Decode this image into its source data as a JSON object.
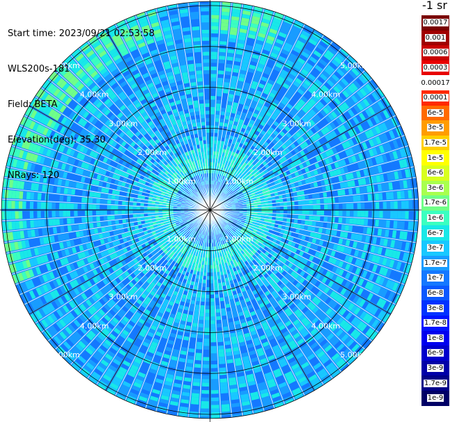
{
  "info": {
    "start_time": "Start time: 2023/09/21 02:53:58",
    "device": "WLS200s-181",
    "field": "Field: BETA",
    "elevation": "Elevation(deg): 35.30",
    "nrays": "NRays: 120"
  },
  "colorbar": {
    "title": "-1 sr",
    "labels": [
      "0.0017",
      "0.001",
      "0.0006",
      "0.0003",
      "0.00017",
      "0.0001",
      "6e-5",
      "3e-5",
      "1.7e-5",
      "1e-5",
      "6e-6",
      "3e-6",
      "1.7e-6",
      "1e-6",
      "6e-7",
      "3e-7",
      "1.7e-7",
      "1e-7",
      "6e-8",
      "3e-8",
      "1.7e-8",
      "1e-8",
      "6e-9",
      "3e-9",
      "1.7e-9",
      "1e-9"
    ],
    "colors": [
      "#7a0000",
      "#a00000",
      "#c80000",
      "#e80000",
      "#ffffff",
      "#ff2a00",
      "#ff6a00",
      "#ff9c00",
      "#ffcf00",
      "#ffff00",
      "#d8ff1e",
      "#a8ff4e",
      "#70ff88",
      "#3affc0",
      "#18e8e8",
      "#18c8ff",
      "#189cff",
      "#1478ff",
      "#0a58ff",
      "#0032ff",
      "#0014ff",
      "#0000ee",
      "#0000cc",
      "#0000a8",
      "#000088",
      "#000066"
    ]
  },
  "chart_data": {
    "type": "heatmap",
    "projection": "polar (PPI scan)",
    "field": "BETA",
    "nrays": 120,
    "range_rings_km": [
      1.0,
      2.0,
      3.0,
      4.0,
      5.0
    ],
    "ring_labels": [
      "1.00km",
      "2.00km",
      "3.00km",
      "4.00km",
      "5.00km"
    ],
    "max_range_km": 5.1,
    "radial_lines_deg": [
      0,
      30,
      60,
      90,
      120,
      150,
      180,
      210,
      240,
      270,
      300,
      330
    ],
    "label_azimuths_deg": [
      45,
      135,
      225,
      315
    ],
    "color_scale": "log",
    "value_range": [
      1e-09,
      0.0017
    ]
  }
}
